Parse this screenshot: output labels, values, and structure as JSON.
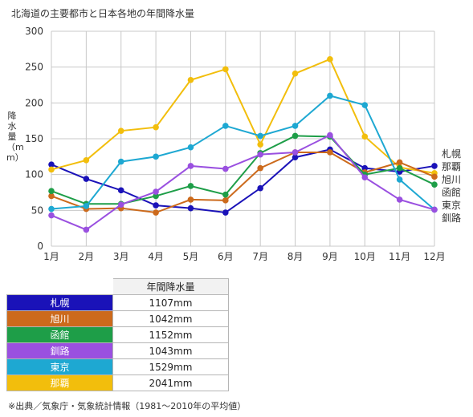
{
  "title": "北海道の主要都市と日本各地の年間降水量",
  "chart_data": {
    "type": "line",
    "title": "北海道の主要都市と日本各地の年間降水量",
    "xlabel": "",
    "ylabel": "降水量（mm）",
    "ylim": [
      0,
      300
    ],
    "yticks": [
      0,
      50,
      100,
      150,
      200,
      250,
      300
    ],
    "grid": true,
    "legend": "right end labels",
    "categories": [
      "1月",
      "2月",
      "3月",
      "4月",
      "5月",
      "6月",
      "7月",
      "8月",
      "9月",
      "10月",
      "11月",
      "12月"
    ],
    "series": [
      {
        "name": "札幌",
        "color": "#1a12b8",
        "values": [
          114,
          94,
          78,
          57,
          53,
          47,
          81,
          124,
          135,
          109,
          104,
          112
        ]
      },
      {
        "name": "那覇",
        "color": "#f2be0c",
        "values": [
          107,
          120,
          161,
          166,
          232,
          247,
          142,
          241,
          261,
          153,
          110,
          102
        ]
      },
      {
        "name": "旭川",
        "color": "#cc6a1c",
        "values": [
          70,
          52,
          53,
          47,
          65,
          64,
          109,
          131,
          131,
          103,
          117,
          97
        ]
      },
      {
        "name": "函館",
        "color": "#1e9e48",
        "values": [
          77,
          59,
          59,
          70,
          84,
          72,
          130,
          154,
          153,
          100,
          109,
          86
        ]
      },
      {
        "name": "東京",
        "color": "#1ea8d2",
        "values": [
          52,
          56,
          118,
          125,
          138,
          168,
          154,
          168,
          210,
          197,
          93,
          51
        ]
      },
      {
        "name": "釧路",
        "color": "#9a50e0",
        "values": [
          43,
          23,
          58,
          76,
          112,
          108,
          128,
          131,
          155,
          96,
          65,
          51
        ]
      }
    ]
  },
  "table": {
    "header": "年間降水量",
    "rows": [
      {
        "name": "札幌",
        "value": "1107mm",
        "color": "#1a12b8"
      },
      {
        "name": "旭川",
        "value": "1042mm",
        "color": "#cc6a1c"
      },
      {
        "name": "函館",
        "value": "1152mm",
        "color": "#1e9e48"
      },
      {
        "name": "釧路",
        "value": "1043mm",
        "color": "#9a50e0"
      },
      {
        "name": "東京",
        "value": "1529mm",
        "color": "#1ea8d2"
      },
      {
        "name": "那覇",
        "value": "2041mm",
        "color": "#f2be0c"
      }
    ]
  },
  "source": "※出典／気象庁・気象統計情報（1981～2010年の平均値）"
}
